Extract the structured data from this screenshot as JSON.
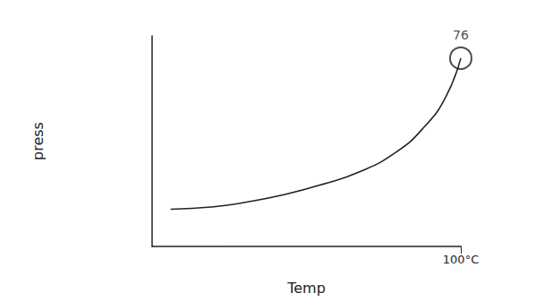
{
  "chart_data": {
    "type": "line",
    "x": [
      6,
      20,
      31,
      43,
      55,
      67,
      79,
      88,
      95,
      100
    ],
    "values": [
      15,
      16,
      18,
      21,
      25,
      30,
      38,
      48,
      60,
      76
    ],
    "color": "#222222",
    "xlabel": "Temp",
    "ylabel": "press",
    "xlim": [
      0,
      100
    ],
    "xticks": [
      {
        "value": 100,
        "label": "100°C"
      }
    ],
    "ylim": [
      0,
      85
    ],
    "yticks": [],
    "grid": false,
    "tick_labels": "x",
    "annotations": [
      {
        "text": "76",
        "x": 100,
        "y": 76
      }
    ]
  }
}
